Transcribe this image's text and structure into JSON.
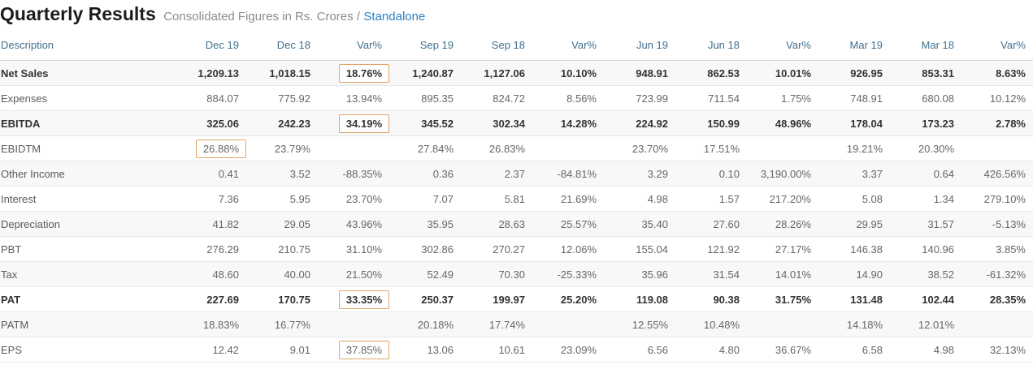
{
  "header": {
    "title": "Quarterly Results",
    "subtitle": "Consolidated Figures in Rs. Crores /",
    "toggle_link": "Standalone"
  },
  "colors": {
    "accent_blue": "#2b80c2",
    "table_header_text": "#41708f",
    "highlight_border": "#dfa566",
    "stripe_row": "#f8f8f8"
  },
  "table": {
    "columns": [
      "Description",
      "Dec 19",
      "Dec 18",
      "Var%",
      "Sep 19",
      "Sep 18",
      "Var%",
      "Jun 19",
      "Jun 18",
      "Var%",
      "Mar 19",
      "Mar 18",
      "Var%"
    ],
    "rows": [
      {
        "label": "Net Sales",
        "bold": true,
        "boxed": [
          2
        ],
        "values": [
          "1,209.13",
          "1,018.15",
          "18.76%",
          "1,240.87",
          "1,127.06",
          "10.10%",
          "948.91",
          "862.53",
          "10.01%",
          "926.95",
          "853.31",
          "8.63%"
        ]
      },
      {
        "label": "Expenses",
        "bold": false,
        "boxed": [],
        "values": [
          "884.07",
          "775.92",
          "13.94%",
          "895.35",
          "824.72",
          "8.56%",
          "723.99",
          "711.54",
          "1.75%",
          "748.91",
          "680.08",
          "10.12%"
        ]
      },
      {
        "label": "EBITDA",
        "bold": true,
        "boxed": [
          2
        ],
        "values": [
          "325.06",
          "242.23",
          "34.19%",
          "345.52",
          "302.34",
          "14.28%",
          "224.92",
          "150.99",
          "48.96%",
          "178.04",
          "173.23",
          "2.78%"
        ]
      },
      {
        "label": "EBIDTM",
        "bold": false,
        "boxed": [
          0
        ],
        "values": [
          "26.88%",
          "23.79%",
          "",
          "27.84%",
          "26.83%",
          "",
          "23.70%",
          "17.51%",
          "",
          "19.21%",
          "20.30%",
          ""
        ]
      },
      {
        "label": "Other Income",
        "bold": false,
        "boxed": [],
        "values": [
          "0.41",
          "3.52",
          "-88.35%",
          "0.36",
          "2.37",
          "-84.81%",
          "3.29",
          "0.10",
          "3,190.00%",
          "3.37",
          "0.64",
          "426.56%"
        ]
      },
      {
        "label": "Interest",
        "bold": false,
        "boxed": [],
        "values": [
          "7.36",
          "5.95",
          "23.70%",
          "7.07",
          "5.81",
          "21.69%",
          "4.98",
          "1.57",
          "217.20%",
          "5.08",
          "1.34",
          "279.10%"
        ]
      },
      {
        "label": "Depreciation",
        "bold": false,
        "boxed": [],
        "values": [
          "41.82",
          "29.05",
          "43.96%",
          "35.95",
          "28.63",
          "25.57%",
          "35.40",
          "27.60",
          "28.26%",
          "29.95",
          "31.57",
          "-5.13%"
        ]
      },
      {
        "label": "PBT",
        "bold": false,
        "boxed": [],
        "values": [
          "276.29",
          "210.75",
          "31.10%",
          "302.86",
          "270.27",
          "12.06%",
          "155.04",
          "121.92",
          "27.17%",
          "146.38",
          "140.96",
          "3.85%"
        ]
      },
      {
        "label": "Tax",
        "bold": false,
        "boxed": [],
        "values": [
          "48.60",
          "40.00",
          "21.50%",
          "52.49",
          "70.30",
          "-25.33%",
          "35.96",
          "31.54",
          "14.01%",
          "14.90",
          "38.52",
          "-61.32%"
        ]
      },
      {
        "label": "PAT",
        "bold": true,
        "boxed": [
          2
        ],
        "values": [
          "227.69",
          "170.75",
          "33.35%",
          "250.37",
          "199.97",
          "25.20%",
          "119.08",
          "90.38",
          "31.75%",
          "131.48",
          "102.44",
          "28.35%"
        ]
      },
      {
        "label": "PATM",
        "bold": false,
        "boxed": [],
        "values": [
          "18.83%",
          "16.77%",
          "",
          "20.18%",
          "17.74%",
          "",
          "12.55%",
          "10.48%",
          "",
          "14.18%",
          "12.01%",
          ""
        ]
      },
      {
        "label": "EPS",
        "bold": false,
        "boxed": [
          2
        ],
        "values": [
          "12.42",
          "9.01",
          "37.85%",
          "13.06",
          "10.61",
          "23.09%",
          "6.56",
          "4.80",
          "36.67%",
          "6.58",
          "4.98",
          "32.13%"
        ]
      }
    ]
  }
}
